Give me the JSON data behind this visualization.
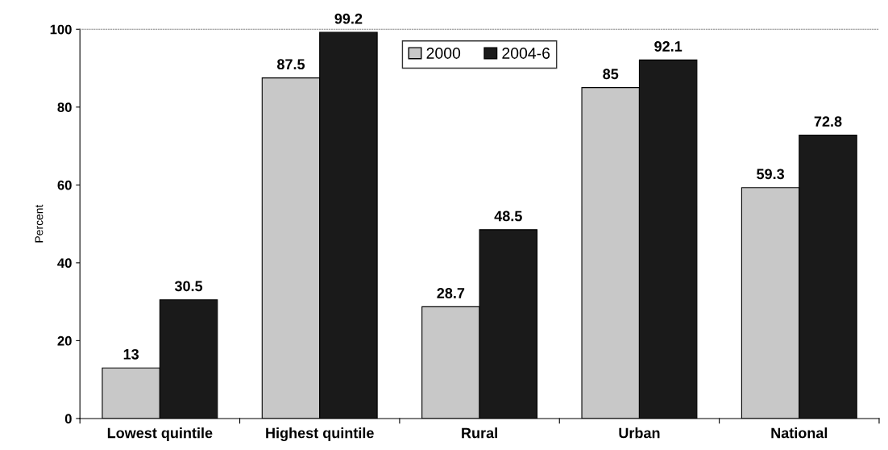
{
  "chart_data": {
    "type": "bar",
    "ylabel": "Percent",
    "categories": [
      "Lowest quintile",
      "Highest quintile",
      "Rural",
      "Urban",
      "National"
    ],
    "series": [
      {
        "name": "2000",
        "color": "#c8c8c8",
        "values": [
          13,
          87.5,
          28.7,
          85,
          59.3
        ]
      },
      {
        "name": "2004-6",
        "color": "#1a1a1a",
        "values": [
          30.5,
          99.2,
          48.5,
          92.1,
          72.8
        ]
      }
    ],
    "ylim": [
      0,
      100
    ],
    "yticks": [
      0,
      20,
      40,
      60,
      80,
      100
    ],
    "grid": false,
    "legend": "top",
    "data_labels": true
  }
}
